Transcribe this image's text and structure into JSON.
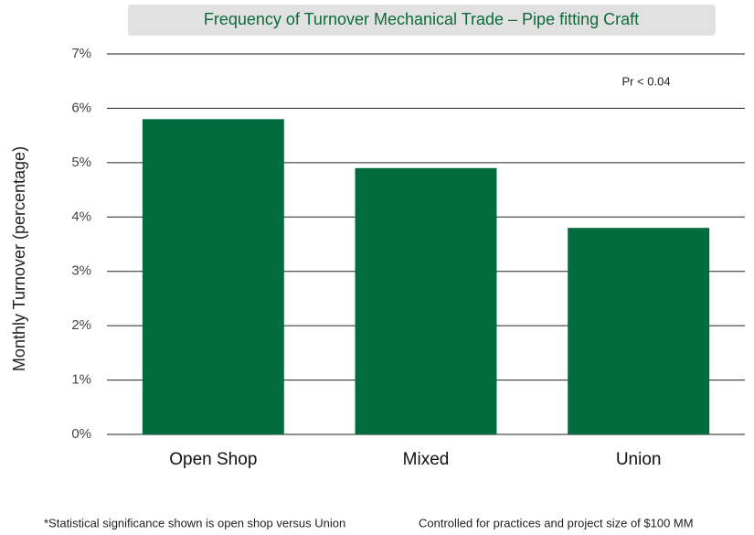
{
  "chart_data": {
    "type": "bar",
    "title": "Frequency of Turnover Mechanical Trade – Pipe fitting Craft",
    "y_label": "Monthly Turnover (percentage)",
    "categories": [
      "Open Shop",
      "Mixed",
      "Union"
    ],
    "values": [
      5.8,
      4.9,
      3.8
    ],
    "color": "#036c3e",
    "ylim": [
      0,
      7
    ],
    "yticks": [
      {
        "value": 0,
        "label": "0%"
      },
      {
        "value": 1,
        "label": "1%"
      },
      {
        "value": 2,
        "label": "2%"
      },
      {
        "value": 3,
        "label": "3%"
      },
      {
        "value": 4,
        "label": "4%"
      },
      {
        "value": 5,
        "label": "5%"
      },
      {
        "value": 6,
        "label": "6%"
      },
      {
        "value": 7,
        "label": "7%"
      }
    ],
    "grid": true,
    "annotation": "Pr < 0.04",
    "footnotes": [
      "*Statistical significance shown is open shop versus Union",
      "Controlled for practices and project size of $100 MM"
    ]
  }
}
